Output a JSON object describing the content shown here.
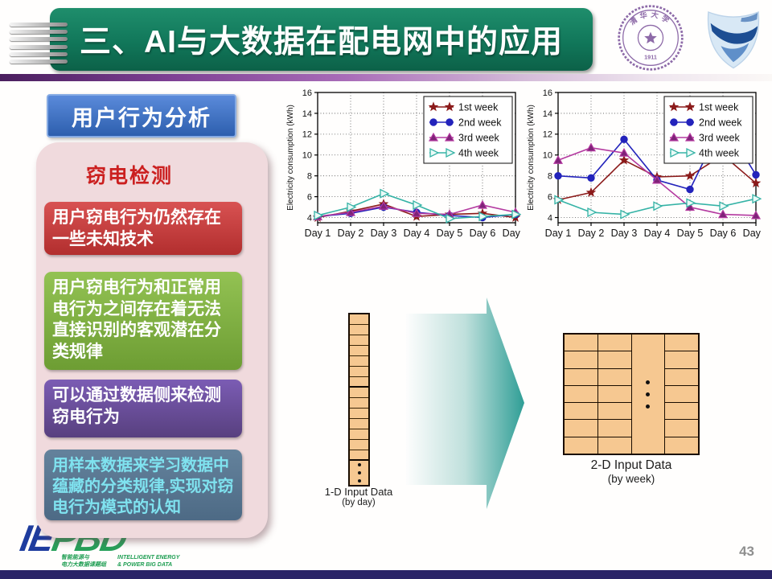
{
  "header": {
    "title": "三、AI与大数据在配电网中的应用"
  },
  "logos": {
    "tsinghua_text": "清华大学",
    "tsinghua_year": "1911"
  },
  "sidebar": {
    "tag": "用户行为分析",
    "panel_title": "窃电检测",
    "boxes": [
      {
        "text": "用户窃电行为仍然存在一些未知技术"
      },
      {
        "text": "用户窃电行为和正常用电行为之间存在着无法直接识别的客观潜在分类规律"
      },
      {
        "text": "可以通过数据侧来检测窃电行为"
      },
      {
        "text": "用样本数据来学习数据中蕴藏的分类规律,实现对窃电行为模式的认知"
      }
    ]
  },
  "chart_data": [
    {
      "type": "line",
      "title": "",
      "xlabel": "",
      "ylabel": "Electricity consumption (kWh)",
      "categories": [
        "Day 1",
        "Day 2",
        "Day 3",
        "Day 4",
        "Day 5",
        "Day 6",
        "Day 7"
      ],
      "ylim": [
        3.5,
        16
      ],
      "yticks": [
        4,
        6,
        8,
        10,
        12,
        14,
        16
      ],
      "grid": true,
      "legend_position": "top-right",
      "series": [
        {
          "name": "1st week",
          "color": "#8b1a1a",
          "marker": "star",
          "marker_fill": "#8b1a1a",
          "values": [
            4.0,
            4.6,
            5.3,
            4.1,
            4.3,
            4.4,
            4.0
          ]
        },
        {
          "name": "2nd week",
          "color": "#2323bb",
          "marker": "circle",
          "marker_fill": "#2323bb",
          "values": [
            4.1,
            4.4,
            5.0,
            4.5,
            4.2,
            4.0,
            4.3
          ]
        },
        {
          "name": "3rd week",
          "color": "#b43aa0",
          "marker": "triangle-up",
          "marker_fill": "#7e2378",
          "values": [
            4.1,
            4.5,
            5.1,
            4.4,
            4.3,
            5.2,
            4.5
          ]
        },
        {
          "name": "4th week",
          "color": "#35b3a6",
          "marker": "triangle-right",
          "marker_fill": "#eafaf7",
          "values": [
            4.2,
            5.0,
            6.3,
            5.2,
            3.9,
            4.1,
            4.3
          ]
        }
      ]
    },
    {
      "type": "line",
      "title": "",
      "xlabel": "",
      "ylabel": "Electricity consumption (kWh)",
      "categories": [
        "Day 1",
        "Day 2",
        "Day 3",
        "Day 4",
        "Day 5",
        "Day 6",
        "Day 7"
      ],
      "ylim": [
        3.5,
        16
      ],
      "yticks": [
        4,
        6,
        8,
        10,
        12,
        14,
        16
      ],
      "grid": true,
      "legend_position": "top-right",
      "series": [
        {
          "name": "1st week",
          "color": "#8b1a1a",
          "marker": "star",
          "marker_fill": "#8b1a1a",
          "values": [
            5.7,
            6.4,
            9.5,
            7.9,
            8.0,
            10.0,
            7.3
          ]
        },
        {
          "name": "2nd week",
          "color": "#2323bb",
          "marker": "circle",
          "marker_fill": "#2323bb",
          "values": [
            8.0,
            7.8,
            11.5,
            7.6,
            6.7,
            13.2,
            8.1
          ]
        },
        {
          "name": "3rd week",
          "color": "#b43aa0",
          "marker": "triangle-up",
          "marker_fill": "#7e2378",
          "values": [
            9.5,
            10.7,
            10.2,
            7.6,
            5.0,
            4.3,
            4.2
          ]
        },
        {
          "name": "4th week",
          "color": "#35b3a6",
          "marker": "triangle-right",
          "marker_fill": "#eafaf7",
          "values": [
            5.7,
            4.5,
            4.3,
            5.1,
            5.4,
            5.1,
            5.8
          ]
        }
      ]
    }
  ],
  "diagram": {
    "strip": {
      "groups": 2,
      "cells_per_group": 7
    },
    "grid": {
      "rows": 7,
      "cols": 4,
      "dots_col": 3
    },
    "strip_label1": "1-D Input Data",
    "strip_label2": "(by day)",
    "grid_label1": "2-D Input Data",
    "grid_label2": "(by week)"
  },
  "footer": {
    "logo_ie": "IE",
    "logo_pbd": "PBD",
    "logo_cn1": "智能能源与",
    "logo_cn2": "电力大数据课题组",
    "logo_en1": "INTELLIGENT ENERGY",
    "logo_en2": "& POWER BIG DATA",
    "page": "43"
  }
}
